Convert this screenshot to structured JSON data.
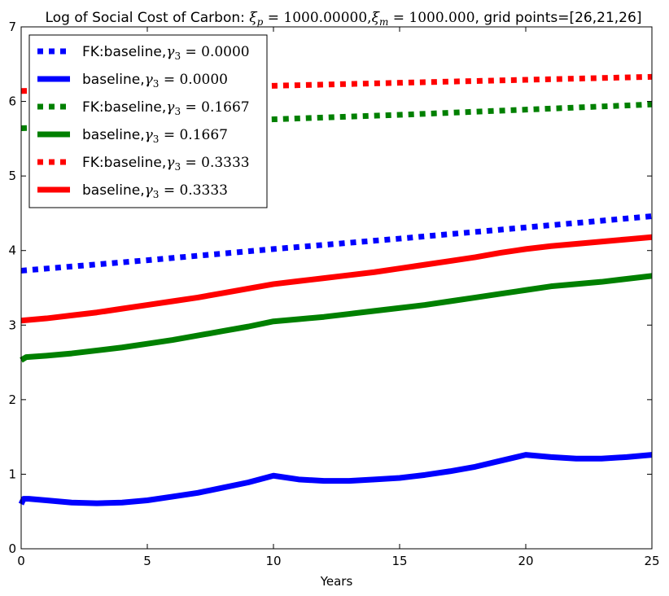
{
  "chart_data": {
    "type": "line",
    "title": "Log of Social Cost of Carbon: ξₚ = 1000.00000, ξₘ = 1000.000, grid points=[26,21,26]",
    "title_parts": {
      "prefix": "Log of Social Cost of Carbon: ",
      "xi_p_value": "1000.00000",
      "xi_m_value": "1000.000",
      "suffix": ", grid points=[26,21,26]"
    },
    "xlabel": "Years",
    "ylabel": "",
    "xlim": [
      0,
      25
    ],
    "ylim": [
      0,
      7
    ],
    "xticks": [
      0,
      5,
      10,
      15,
      20,
      25
    ],
    "yticks": [
      0,
      1,
      2,
      3,
      4,
      5,
      6,
      7
    ],
    "grid": false,
    "legend_position": "top-left",
    "series": [
      {
        "name": "FK:baseline,γ₃ = 0.0000",
        "legend_prefix": "FK:baseline,",
        "gamma": "0.0000",
        "style": "dotted",
        "color": "#0000ff",
        "x": [
          0,
          5,
          10,
          15,
          20,
          25
        ],
        "y": [
          3.73,
          3.87,
          4.02,
          4.16,
          4.31,
          4.46
        ]
      },
      {
        "name": "baseline,γ₃ = 0.0000",
        "legend_prefix": "baseline,",
        "gamma": "0.0000",
        "style": "solid",
        "color": "#0000ff",
        "x": [
          0,
          0.1,
          0.3,
          1,
          2,
          3,
          4,
          5,
          6,
          7,
          8,
          9,
          10,
          11,
          12,
          13,
          14,
          15,
          16,
          17,
          18,
          19,
          20,
          21,
          22,
          23,
          24,
          25
        ],
        "y": [
          0.6,
          0.67,
          0.67,
          0.65,
          0.62,
          0.61,
          0.62,
          0.65,
          0.7,
          0.75,
          0.82,
          0.89,
          0.98,
          0.93,
          0.91,
          0.91,
          0.93,
          0.95,
          0.99,
          1.04,
          1.1,
          1.18,
          1.26,
          1.23,
          1.21,
          1.21,
          1.23,
          1.26
        ]
      },
      {
        "name": "FK:baseline,γ₃ = 0.1667",
        "legend_prefix": "FK:baseline,",
        "gamma": "0.1667",
        "style": "dotted",
        "color": "#008000",
        "x": [
          0,
          5,
          10,
          15,
          20,
          25
        ],
        "y": [
          5.64,
          5.7,
          5.76,
          5.82,
          5.89,
          5.96
        ]
      },
      {
        "name": "baseline,γ₃ = 0.1667",
        "legend_prefix": "baseline,",
        "gamma": "0.1667",
        "style": "solid",
        "color": "#008000",
        "x": [
          0,
          0.2,
          1,
          2,
          3,
          4,
          5,
          6,
          7,
          8,
          9,
          10,
          11,
          12,
          13,
          14,
          15,
          16,
          17,
          18,
          19,
          20,
          21,
          22,
          23,
          24,
          25
        ],
        "y": [
          2.53,
          2.57,
          2.59,
          2.62,
          2.66,
          2.7,
          2.75,
          2.8,
          2.86,
          2.92,
          2.98,
          3.05,
          3.08,
          3.11,
          3.15,
          3.19,
          3.23,
          3.27,
          3.32,
          3.37,
          3.42,
          3.47,
          3.52,
          3.55,
          3.58,
          3.62,
          3.66
        ]
      },
      {
        "name": "FK:baseline,γ₃ = 0.3333",
        "legend_prefix": "FK:baseline,",
        "gamma": "0.3333",
        "style": "dotted",
        "color": "#ff0000",
        "x": [
          0,
          5,
          10,
          15,
          20,
          25
        ],
        "y": [
          6.14,
          6.17,
          6.21,
          6.25,
          6.29,
          6.33
        ]
      },
      {
        "name": "baseline,γ₃ = 0.3333",
        "legend_prefix": "baseline,",
        "gamma": "0.3333",
        "style": "solid",
        "color": "#ff0000",
        "x": [
          0,
          1,
          2,
          3,
          4,
          5,
          6,
          7,
          8,
          9,
          10,
          11,
          12,
          13,
          14,
          15,
          16,
          17,
          18,
          19,
          20,
          21,
          22,
          23,
          24,
          25
        ],
        "y": [
          3.06,
          3.09,
          3.13,
          3.17,
          3.22,
          3.27,
          3.32,
          3.37,
          3.43,
          3.49,
          3.55,
          3.59,
          3.63,
          3.67,
          3.71,
          3.76,
          3.81,
          3.86,
          3.91,
          3.97,
          4.02,
          4.06,
          4.09,
          4.12,
          4.15,
          4.18
        ]
      }
    ]
  }
}
